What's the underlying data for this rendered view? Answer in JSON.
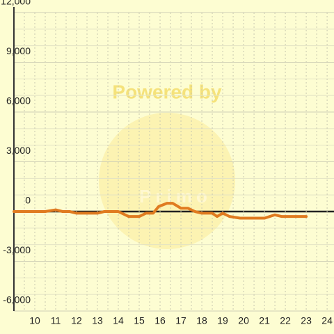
{
  "chart_data": {
    "type": "line",
    "watermark": [
      "Powered by",
      "Primo"
    ],
    "x": [
      9,
      10.5,
      11,
      11.33,
      11.67,
      12,
      13,
      13.33,
      14,
      14.5,
      15,
      15.33,
      15.67,
      15.93,
      16.33,
      16.6,
      17,
      17.33,
      17.67,
      18,
      18.5,
      18.73,
      19,
      19.33,
      19.83,
      21,
      21.5,
      21.83,
      23
    ],
    "series": [
      {
        "name": "value",
        "color": "#e07b20",
        "values": [
          0,
          0,
          100,
          0,
          0,
          -100,
          -100,
          0,
          0,
          -300,
          -300,
          -100,
          -100,
          300,
          500,
          500,
          200,
          200,
          0,
          -100,
          -100,
          -300,
          -100,
          -300,
          -400,
          -400,
          -200,
          -300,
          -300
        ]
      }
    ],
    "xlim": [
      9,
      24.33
    ],
    "xticks": [
      10,
      11,
      12,
      13,
      14,
      15,
      16,
      17,
      18,
      19,
      20,
      21,
      22,
      23,
      24
    ],
    "ylim": [
      -6000,
      12000
    ],
    "yticks": [
      {
        "value": -6000,
        "label": "-6,000"
      },
      {
        "value": -3000,
        "label": "-3,000"
      },
      0,
      {
        "value": 3000,
        "label": "3,000"
      },
      {
        "value": 6000,
        "label": "6,000"
      },
      {
        "value": 9000,
        "label": "9,000"
      },
      {
        "value": 12000,
        "label": "12,000"
      }
    ],
    "grid": true
  }
}
